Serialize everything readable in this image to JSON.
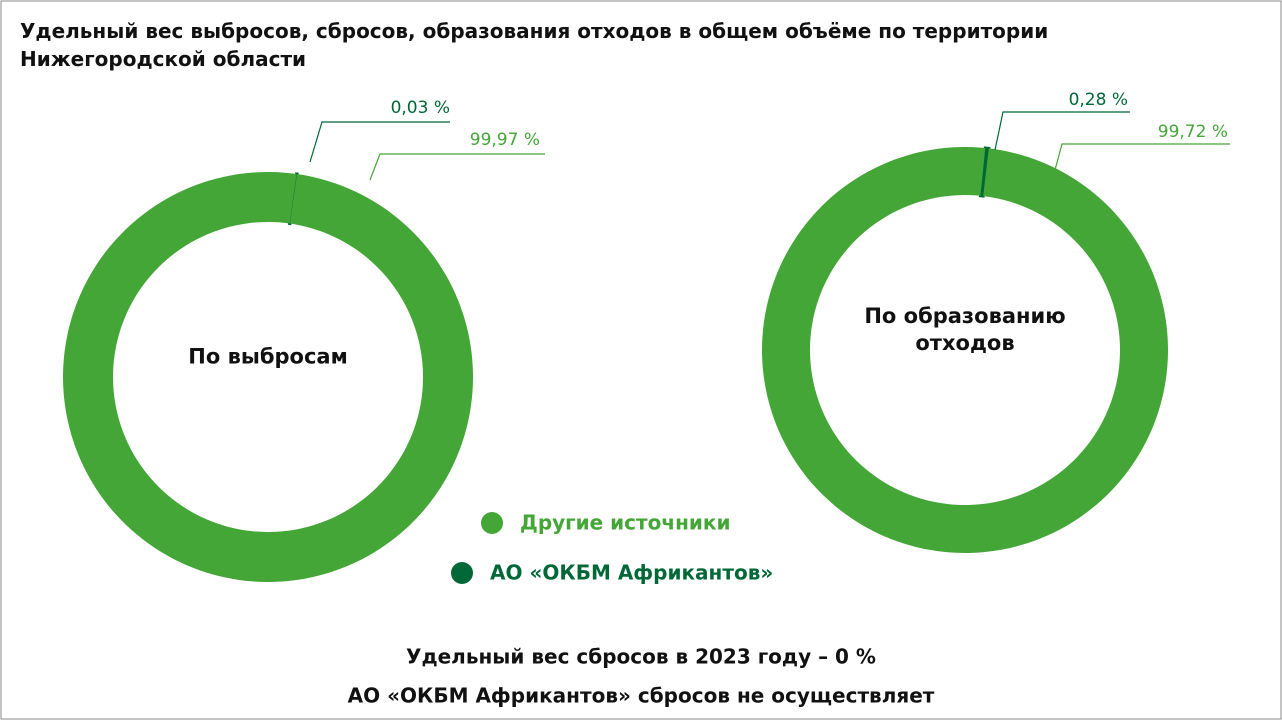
{
  "title": "Удельный вес выбросов, сбросов, образования отходов в общем объёме по территории Нижегородской области",
  "chart_data": [
    {
      "type": "pie",
      "title": "По выбросам",
      "categories": [
        "Другие источники",
        "АО «ОКБМ Африкантов»"
      ],
      "values": [
        99.97,
        0.03
      ],
      "value_labels": [
        "99,97 %",
        "0,03 %"
      ],
      "colors": [
        "#43a636",
        "#006837"
      ]
    },
    {
      "type": "pie",
      "title": "По образованию отходов",
      "categories": [
        "Другие источники",
        "АО «ОКБМ Африкантов»"
      ],
      "values": [
        99.72,
        0.28
      ],
      "value_labels": [
        "99,72 %",
        "0,28 %"
      ],
      "colors": [
        "#43a636",
        "#006837"
      ]
    }
  ],
  "notes": [
    "Удельный вес сбросов в 2023 году – 0 %",
    "АО «ОКБМ Африкантов» сбросов не осуществляет"
  ]
}
